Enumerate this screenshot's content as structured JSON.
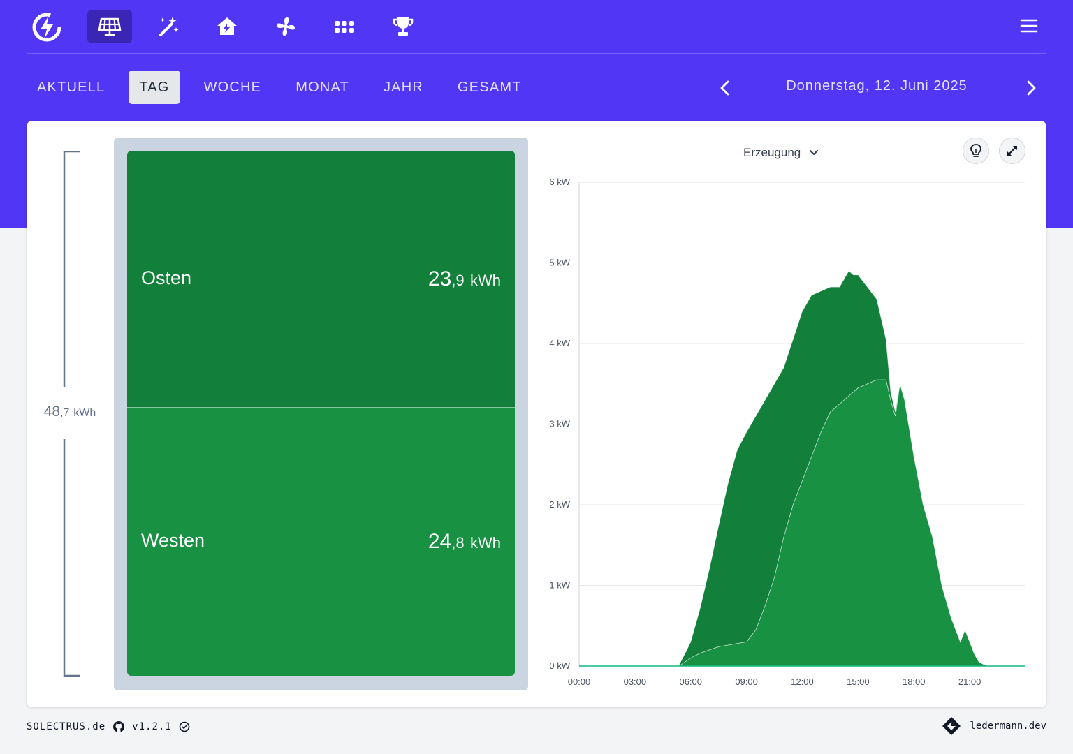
{
  "nav": {
    "items": [
      {
        "id": "inverter",
        "icon": "solar-panel-icon",
        "active": true
      },
      {
        "id": "forecast",
        "icon": "magic-wand-icon",
        "active": false
      },
      {
        "id": "house",
        "icon": "house-icon",
        "active": false
      },
      {
        "id": "heatpump",
        "icon": "fan-icon",
        "active": false
      },
      {
        "id": "apps",
        "icon": "grid-icon",
        "active": false
      },
      {
        "id": "ranking",
        "icon": "trophy-icon",
        "active": false
      }
    ],
    "logo_icon": "lightning-logo-icon",
    "menu_icon": "hamburger-menu-icon"
  },
  "tabs": [
    {
      "label": "AKTUELL",
      "active": false
    },
    {
      "label": "TAG",
      "active": true
    },
    {
      "label": "WOCHE",
      "active": false
    },
    {
      "label": "MONAT",
      "active": false
    },
    {
      "label": "JAHR",
      "active": false
    },
    {
      "label": "GESAMT",
      "active": false
    }
  ],
  "date_nav": {
    "label": "Donnerstag, 12. Juni 2025",
    "prev_icon": "chevron-left-icon",
    "next_icon": "chevron-right-icon"
  },
  "summary": {
    "total_int": "48",
    "total_dec": ",7",
    "total_unit": "kWh"
  },
  "strings": [
    {
      "name": "Osten",
      "value_int": "23",
      "value_dec": ",9",
      "unit": "kWh"
    },
    {
      "name": "Westen",
      "value_int": "24",
      "value_dec": ",8",
      "unit": "kWh"
    }
  ],
  "chart_controls": {
    "select_label": "Erzeugung",
    "select_icon": "chevron-down-icon",
    "tip_icon": "lightbulb-icon",
    "expand_icon": "expand-icon"
  },
  "chart_data": {
    "type": "area",
    "stacked": true,
    "x_unit": "time",
    "xlim": [
      0,
      24
    ],
    "ylim": [
      0,
      6
    ],
    "y_ticks": [
      "0 kW",
      "1 kW",
      "2 kW",
      "3 kW",
      "4 kW",
      "5 kW",
      "6 kW"
    ],
    "x_ticks": [
      "00:00",
      "03:00",
      "06:00",
      "09:00",
      "12:00",
      "15:00",
      "18:00",
      "21:00"
    ],
    "grid": true,
    "colors": {
      "Osten": "#12803a",
      "Westen": "#189143"
    },
    "x_hours": [
      0,
      5.35,
      5.5,
      5.75,
      6.0,
      6.5,
      7.0,
      7.5,
      8.0,
      8.5,
      9.0,
      9.5,
      10.0,
      10.5,
      11.0,
      11.5,
      12.0,
      12.5,
      13.0,
      13.5,
      14.0,
      14.25,
      14.5,
      14.75,
      15.0,
      15.5,
      16.0,
      16.5,
      16.75,
      17.0,
      17.25,
      17.5,
      18.0,
      18.5,
      19.0,
      19.5,
      20.0,
      20.5,
      20.75,
      21.0,
      21.25,
      21.5,
      21.75,
      22.0,
      24
    ],
    "series": [
      {
        "name": "Westen",
        "values": [
          0,
          0,
          0.02,
          0.06,
          0.1,
          0.16,
          0.2,
          0.24,
          0.26,
          0.28,
          0.3,
          0.45,
          0.75,
          1.1,
          1.6,
          2.0,
          2.3,
          2.6,
          2.9,
          3.15,
          3.25,
          3.3,
          3.35,
          3.4,
          3.45,
          3.5,
          3.55,
          3.55,
          3.3,
          3.1,
          3.5,
          3.3,
          2.6,
          2.0,
          1.6,
          1.0,
          0.6,
          0.3,
          0.45,
          0.3,
          0.15,
          0.05,
          0.02,
          0,
          0
        ]
      },
      {
        "name": "Osten",
        "values": [
          0,
          0,
          0.05,
          0.12,
          0.2,
          0.55,
          1.0,
          1.5,
          2.0,
          2.4,
          2.6,
          2.65,
          2.55,
          2.4,
          2.1,
          2.05,
          2.1,
          2.0,
          1.75,
          1.55,
          1.45,
          1.5,
          1.55,
          1.45,
          1.4,
          1.2,
          1.0,
          0.5,
          0.1,
          0.05,
          0,
          0,
          0,
          0,
          0,
          0,
          0,
          0,
          0,
          0,
          0,
          0,
          0,
          0,
          0
        ]
      }
    ]
  },
  "footer": {
    "brand": "SOLECTRUS.de",
    "github_icon": "github-icon",
    "version": "v1.2.1",
    "check_icon": "check-circle-icon",
    "author": "ledermann.dev",
    "author_icon": "ledermann-logo-icon"
  }
}
